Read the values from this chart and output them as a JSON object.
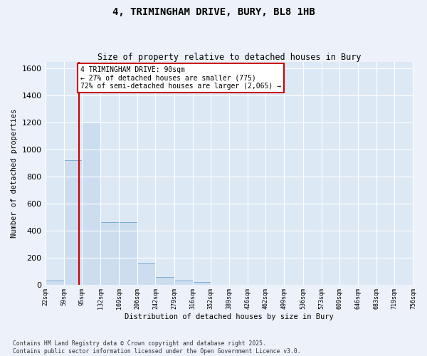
{
  "title_line1": "4, TRIMINGHAM DRIVE, BURY, BL8 1HB",
  "title_line2": "Size of property relative to detached houses in Bury",
  "xlabel": "Distribution of detached houses by size in Bury",
  "ylabel": "Number of detached properties",
  "bar_color": "#ccddf0",
  "bar_edge_color": "#7aabd4",
  "plot_bg_color": "#dde8f5",
  "fig_bg_color": "#edf2fa",
  "grid_color": "#ffffff",
  "red_line_color": "#cc0000",
  "annotation_text_line1": "4 TRIMINGHAM DRIVE: 90sqm",
  "annotation_text_line2": "← 27% of detached houses are smaller (775)",
  "annotation_text_line3": "72% of semi-detached houses are larger (2,065) →",
  "red_line_x": 90,
  "bins": [
    22,
    59,
    95,
    132,
    169,
    206,
    242,
    279,
    316,
    352,
    389,
    426,
    462,
    499,
    536,
    573,
    609,
    646,
    683,
    719,
    756
  ],
  "bar_heights": [
    30,
    920,
    1200,
    460,
    460,
    155,
    55,
    30,
    20,
    0,
    0,
    0,
    0,
    0,
    0,
    0,
    0,
    0,
    0,
    0
  ],
  "ylim": [
    0,
    1650
  ],
  "yticks": [
    0,
    200,
    400,
    600,
    800,
    1000,
    1200,
    1400,
    1600
  ],
  "footnote_line1": "Contains HM Land Registry data © Crown copyright and database right 2025.",
  "footnote_line2": "Contains public sector information licensed under the Open Government Licence v3.0."
}
